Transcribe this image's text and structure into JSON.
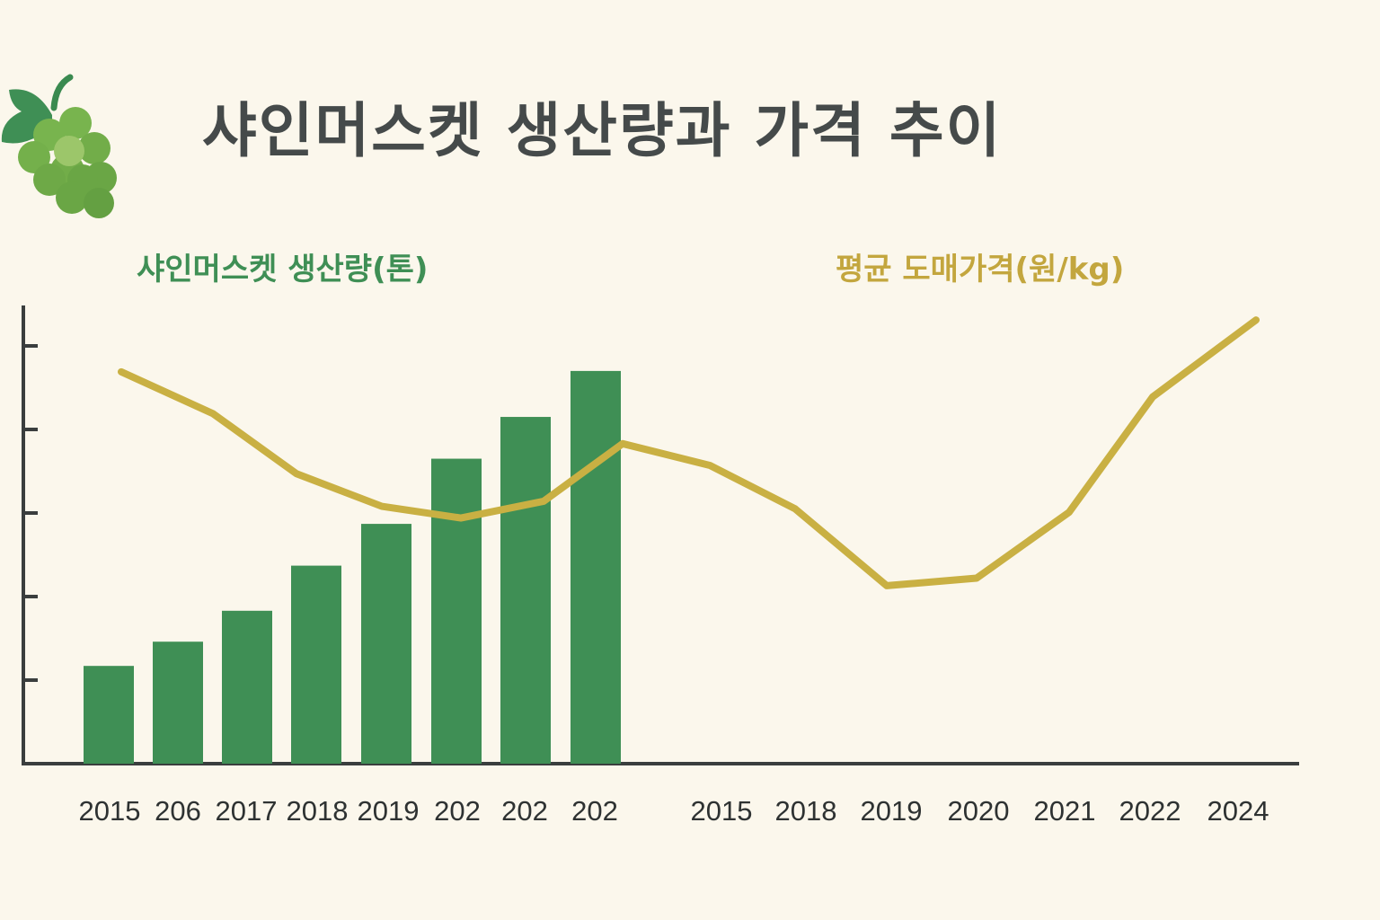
{
  "chart_data": {
    "type": "bar+line",
    "title": "샤인머스켓 생산량과 가격 추이",
    "legend": [
      {
        "label": "샤인머스켓 생산량(톤)",
        "color": "#3f8f55",
        "kind": "bar"
      },
      {
        "label": "평균 도매가격(원/kg)",
        "color": "#c9b043",
        "kind": "line"
      }
    ],
    "ylim": [
      0,
      5.5
    ],
    "y_tick_labels": "none",
    "grid": false,
    "bar_categories": [
      "2015",
      "206",
      "2017",
      "2018",
      "2019",
      "202",
      "202",
      "202"
    ],
    "bar_values": [
      1.17,
      1.46,
      1.83,
      2.37,
      2.87,
      3.65,
      4.15,
      4.7
    ],
    "line_categories": [
      "2015",
      "2018",
      "2019",
      "2020",
      "2021",
      "2022",
      "2024"
    ],
    "line_values": [
      4.69,
      4.19,
      3.47,
      3.08,
      2.94,
      3.14,
      3.83,
      3.57,
      3.05,
      2.13,
      2.22,
      3.01,
      4.39,
      5.31
    ],
    "colors": {
      "background": "#fbf7ec",
      "bar": "#3f8f55",
      "line": "#c9b043",
      "axis": "#3a3e3e",
      "title": "#454a4a"
    },
    "icon": "grape-bunch-icon"
  }
}
